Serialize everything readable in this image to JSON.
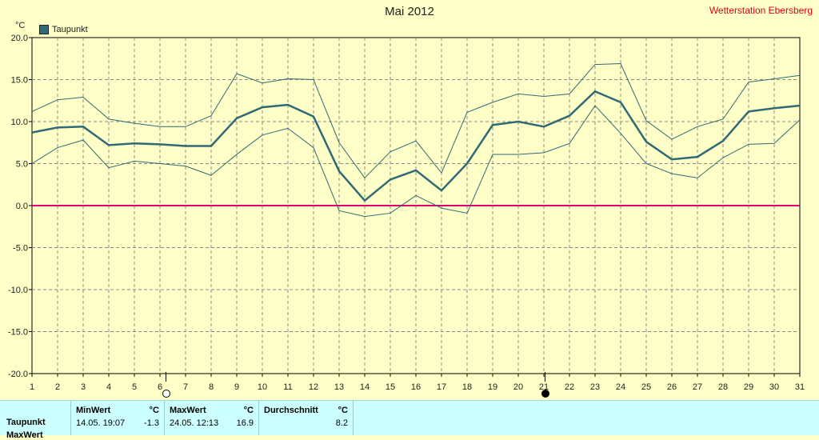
{
  "title": "Mai 2012",
  "station": "Wetterstation Ebersberg",
  "unit_label": "°C",
  "legend_label": "Taupunkt",
  "chart_data": {
    "type": "line",
    "title": "Mai 2012",
    "ylabel": "°C",
    "xlim": [
      1,
      31
    ],
    "ylim": [
      -20,
      20
    ],
    "grid": true,
    "x": [
      1,
      2,
      3,
      4,
      5,
      6,
      7,
      8,
      9,
      10,
      11,
      12,
      13,
      14,
      15,
      16,
      17,
      18,
      19,
      20,
      21,
      22,
      23,
      24,
      25,
      26,
      27,
      28,
      29,
      30,
      31
    ],
    "y_ticks": [
      "20.0",
      "15.0",
      "10.0",
      "5.0",
      "0.0",
      "-5.0",
      "-10.0",
      "-15.0",
      "-20.0"
    ],
    "x_ticks": [
      "1",
      "2",
      "3",
      "4",
      "5",
      "6",
      "7",
      "8",
      "9",
      "10",
      "11",
      "12",
      "13",
      "14",
      "15",
      "16",
      "17",
      "18",
      "19",
      "20",
      "21",
      "22",
      "23",
      "24",
      "25",
      "26",
      "27",
      "28",
      "29",
      "30",
      "31"
    ],
    "zero_line": 0,
    "series": [
      {
        "name": "Taupunkt",
        "role": "avg",
        "color": "#2f6a75",
        "values": [
          8.7,
          9.3,
          9.4,
          7.2,
          7.4,
          7.3,
          7.1,
          7.1,
          10.4,
          11.7,
          12.0,
          10.6,
          4.1,
          0.6,
          3.1,
          4.2,
          1.8,
          5.0,
          9.6,
          10.0,
          9.4,
          10.7,
          13.6,
          12.3,
          7.6,
          5.5,
          5.8,
          7.7,
          11.2,
          11.6,
          11.9
        ]
      },
      {
        "role": "max",
        "color": "#2f6a75",
        "values": [
          11.2,
          12.6,
          12.9,
          10.3,
          9.8,
          9.4,
          9.4,
          10.7,
          15.7,
          14.6,
          15.1,
          15.0,
          7.5,
          3.3,
          6.4,
          7.7,
          3.9,
          11.1,
          12.3,
          13.3,
          13.0,
          13.3,
          16.8,
          16.9,
          10.1,
          7.9,
          9.4,
          10.3,
          14.7,
          15.1,
          15.5
        ]
      },
      {
        "role": "min",
        "color": "#2f6a75",
        "values": [
          5.0,
          6.9,
          7.8,
          4.5,
          5.3,
          5.0,
          4.7,
          3.6,
          6.1,
          8.4,
          9.2,
          6.9,
          -0.6,
          -1.3,
          -0.9,
          1.2,
          -0.3,
          -0.9,
          6.1,
          6.1,
          6.3,
          7.4,
          11.9,
          8.6,
          5.0,
          3.8,
          3.3,
          5.7,
          7.3,
          7.4,
          10.2
        ]
      }
    ]
  },
  "moon_phases": [
    {
      "day": 6,
      "phase": "full-moon"
    },
    {
      "day": 21,
      "phase": "new-moon"
    }
  ],
  "stats": {
    "row_label": "Taupunkt",
    "row_label_2": "MaxWert",
    "min_header": "MinWert",
    "min_unit": "°C",
    "min_date": "14.05.  19:07",
    "min_value": "-1.3",
    "max_header": "MaxWert",
    "max_unit": "°C",
    "max_date": "24.05.  12:13",
    "max_value": "16.9",
    "avg_header": "Durchschnitt",
    "avg_unit": "°C",
    "avg_value": "8.2"
  }
}
